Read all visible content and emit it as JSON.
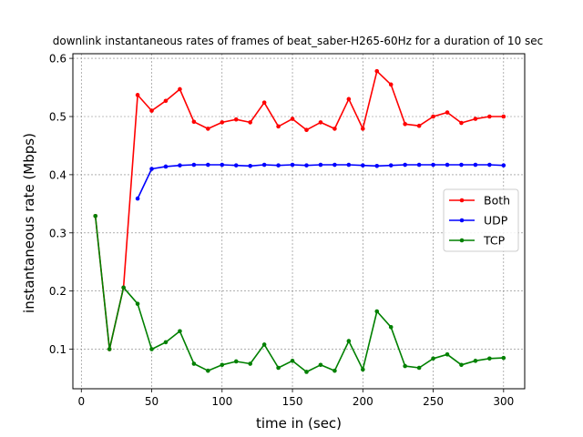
{
  "chart_data": {
    "type": "line",
    "title": "downlink instantaneous rates of frames of beat_saber-H265-60Hz for a duration of 10 sec",
    "xlabel": "time in (sec)",
    "ylabel": "instantaneous rate (Mbps)",
    "xlim": [
      -6,
      315
    ],
    "ylim": [
      0.032,
      0.608
    ],
    "xticks": [
      0,
      50,
      100,
      150,
      200,
      250,
      300
    ],
    "yticks": [
      0.1,
      0.2,
      0.3,
      0.4,
      0.5,
      0.6
    ],
    "grid": true,
    "legend_position": "center-right",
    "series": [
      {
        "name": "Both",
        "color": "#ff0000",
        "x": [
          10,
          20,
          30,
          40,
          50,
          60,
          70,
          80,
          90,
          100,
          110,
          120,
          130,
          140,
          150,
          160,
          170,
          180,
          190,
          200,
          210,
          220,
          230,
          240,
          250,
          260,
          270,
          280,
          290,
          300
        ],
        "y": [
          0.329,
          0.1,
          0.206,
          0.537,
          0.51,
          0.527,
          0.547,
          0.491,
          0.479,
          0.49,
          0.495,
          0.49,
          0.524,
          0.483,
          0.496,
          0.477,
          0.49,
          0.479,
          0.53,
          0.479,
          0.578,
          0.555,
          0.487,
          0.484,
          0.5,
          0.507,
          0.489,
          0.496,
          0.5,
          0.5
        ]
      },
      {
        "name": "UDP",
        "color": "#0000ff",
        "x": [
          40,
          50,
          60,
          70,
          80,
          90,
          100,
          110,
          120,
          130,
          140,
          150,
          160,
          170,
          180,
          190,
          200,
          210,
          220,
          230,
          240,
          250,
          260,
          270,
          280,
          290,
          300
        ],
        "y": [
          0.359,
          0.41,
          0.414,
          0.416,
          0.417,
          0.417,
          0.417,
          0.416,
          0.415,
          0.417,
          0.416,
          0.417,
          0.416,
          0.417,
          0.417,
          0.417,
          0.416,
          0.415,
          0.416,
          0.417,
          0.417,
          0.417,
          0.417,
          0.417,
          0.417,
          0.417,
          0.416
        ]
      },
      {
        "name": "TCP",
        "color": "#008000",
        "x": [
          10,
          20,
          30,
          40,
          50,
          60,
          70,
          80,
          90,
          100,
          110,
          120,
          130,
          140,
          150,
          160,
          170,
          180,
          190,
          200,
          210,
          220,
          230,
          240,
          250,
          260,
          270,
          280,
          290,
          300
        ],
        "y": [
          0.329,
          0.1,
          0.206,
          0.178,
          0.1,
          0.112,
          0.131,
          0.075,
          0.063,
          0.073,
          0.079,
          0.075,
          0.108,
          0.068,
          0.08,
          0.061,
          0.073,
          0.063,
          0.114,
          0.065,
          0.165,
          0.138,
          0.071,
          0.068,
          0.084,
          0.091,
          0.073,
          0.08,
          0.084,
          0.085
        ]
      }
    ]
  }
}
